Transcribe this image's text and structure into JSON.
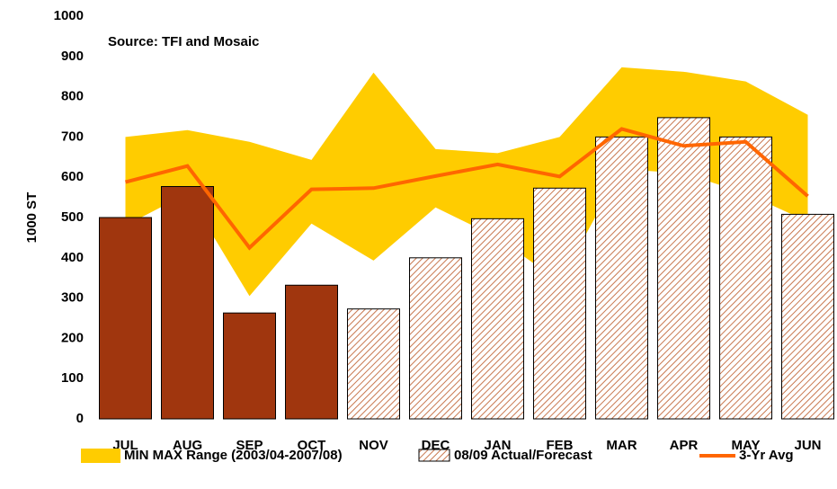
{
  "chart_data": {
    "type": "combo",
    "annotation": "Source: TFI and Mosaic",
    "y_label": "1000 ST",
    "categories": [
      "JUL",
      "AUG",
      "SEP",
      "OCT",
      "NOV",
      "DEC",
      "JAN",
      "FEB",
      "MAR",
      "APR",
      "MAY",
      "JUN"
    ],
    "ylim": [
      0,
      1000
    ],
    "yticks": [
      0,
      100,
      200,
      300,
      400,
      500,
      600,
      700,
      800,
      900,
      1000
    ],
    "range": {
      "name": "MIN MAX Range (2003/04-2007/08)",
      "color": "#ffcc00",
      "min": [
        480,
        560,
        305,
        485,
        393,
        525,
        450,
        340,
        620,
        610,
        560,
        490
      ],
      "max": [
        700,
        717,
        688,
        643,
        860,
        670,
        660,
        700,
        873,
        862,
        838,
        755
      ]
    },
    "bars": {
      "name": "08/09 Actual/Forecast",
      "color": "#a0360e",
      "hatch_color": "#c87850",
      "values": [
        500,
        577,
        263,
        332,
        273,
        400,
        497,
        573,
        700,
        748,
        700,
        508
      ],
      "hatched": [
        false,
        false,
        false,
        false,
        true,
        true,
        true,
        true,
        true,
        true,
        true,
        true
      ]
    },
    "line": {
      "name": "3-Yr Avg",
      "color": "#ff6600",
      "values": [
        588,
        628,
        425,
        570,
        573,
        603,
        632,
        602,
        720,
        678,
        688,
        553
      ]
    }
  }
}
